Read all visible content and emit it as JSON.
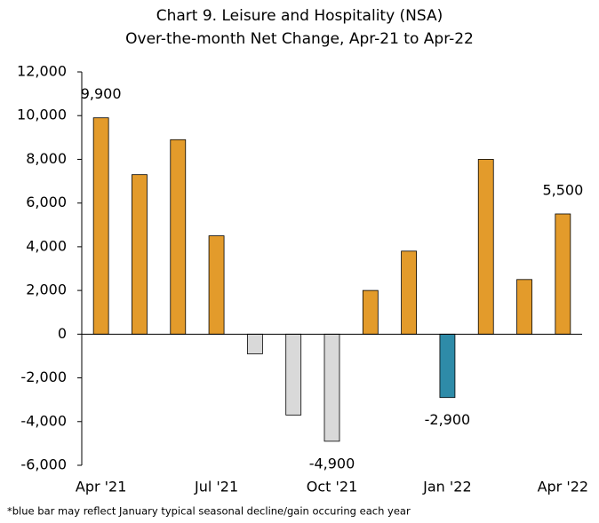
{
  "chart_data": {
    "type": "bar",
    "title": "Chart 9. Leisure and Hospitality (NSA)",
    "subtitle": "Over-the-month Net Change, Apr-21 to Apr-22",
    "categories": [
      "Apr '21",
      null,
      null,
      "Jul '21",
      null,
      null,
      "Oct '21",
      null,
      null,
      "Jan '22",
      null,
      null,
      "Apr '22"
    ],
    "values": [
      9900,
      7300,
      8900,
      4500,
      -900,
      -3700,
      -4900,
      2000,
      3800,
      -2900,
      8000,
      2500,
      5500
    ],
    "value_labels": [
      "9,900",
      null,
      null,
      null,
      null,
      null,
      "-4,900",
      null,
      null,
      "-2,900",
      null,
      null,
      "5,500"
    ],
    "colors": [
      "#E39B2B",
      "#E39B2B",
      "#E39B2B",
      "#E39B2B",
      "#D9D9D9",
      "#D9D9D9",
      "#D9D9D9",
      "#E39B2B",
      "#E39B2B",
      "#2E8BA8",
      "#E39B2B",
      "#E39B2B",
      "#E39B2B"
    ],
    "ylim": [
      -6000,
      12000
    ],
    "yticks": [
      {
        "value": -6000,
        "label": "-6,000"
      },
      {
        "value": -4000,
        "label": "-4,000"
      },
      {
        "value": -2000,
        "label": "-2,000"
      },
      0,
      {
        "value": 2000,
        "label": "2,000"
      },
      {
        "value": 4000,
        "label": "4,000"
      },
      {
        "value": 6000,
        "label": "6,000"
      },
      {
        "value": 8000,
        "label": "8,000"
      },
      {
        "value": 10000,
        "label": "10,000"
      },
      {
        "value": 12000,
        "label": "12,000"
      }
    ],
    "footnote": "*blue bar may reflect January typical seasonal decline/gain occuring each year"
  }
}
